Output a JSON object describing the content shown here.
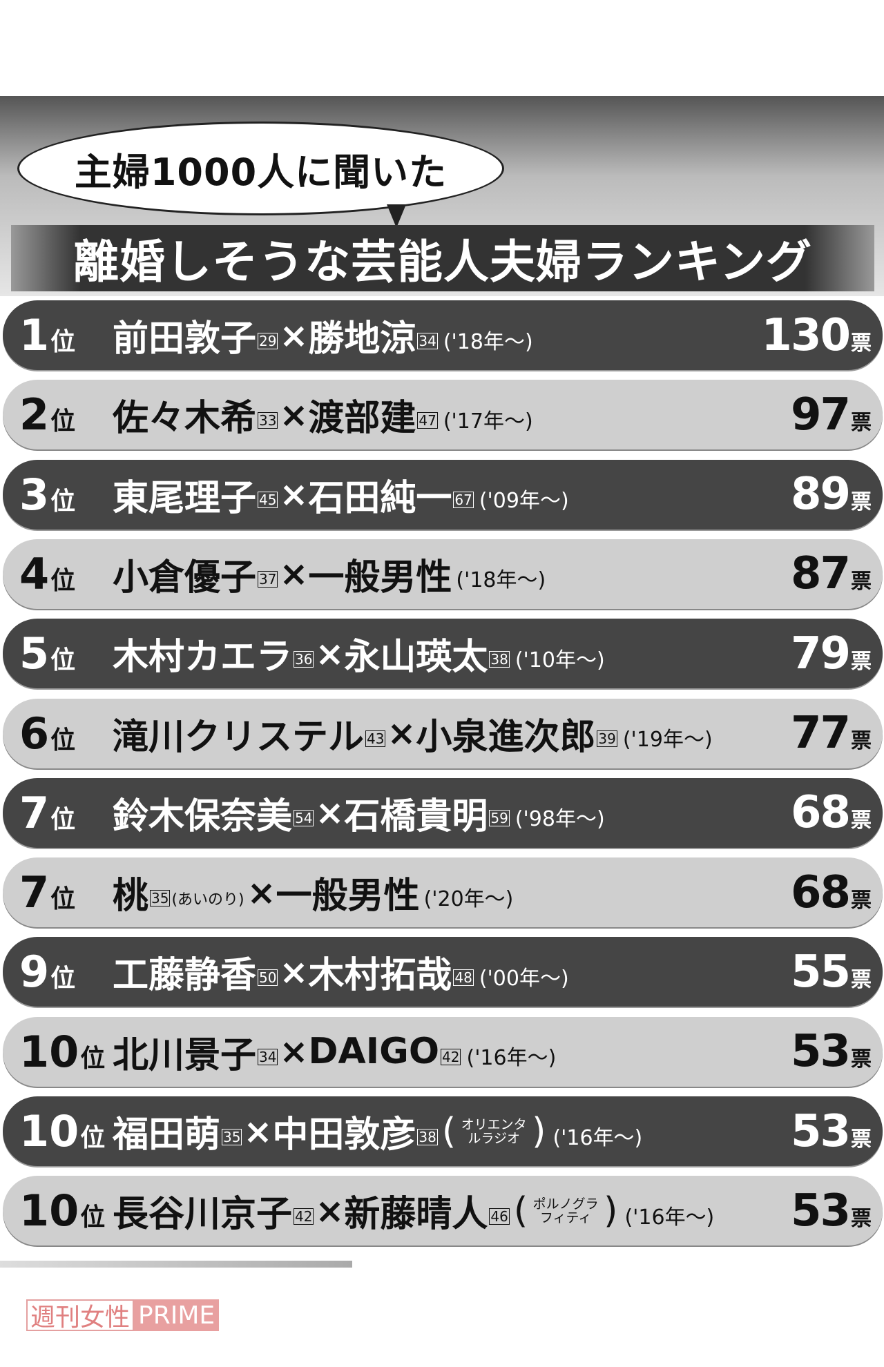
{
  "header": {
    "bubble": "主婦1000人に聞いた",
    "title": "離婚しそうな芸能人夫婦ランキング"
  },
  "rank_unit": "位",
  "separator": "×",
  "vote_unit": "票",
  "rows": [
    {
      "rank": "1",
      "wife": "前田敦子",
      "wife_age": 29,
      "husband": "勝地涼",
      "husband_age": 34,
      "since": "('18年〜)",
      "votes": 130
    },
    {
      "rank": "2",
      "wife": "佐々木希",
      "wife_age": 33,
      "husband": "渡部建",
      "husband_age": 47,
      "since": "('17年〜)",
      "votes": 97
    },
    {
      "rank": "3",
      "wife": "東尾理子",
      "wife_age": 45,
      "husband": "石田純一",
      "husband_age": 67,
      "since": "('09年〜)",
      "votes": 89
    },
    {
      "rank": "4",
      "wife": "小倉優子",
      "wife_age": 37,
      "husband": "一般男性",
      "since": "('18年〜)",
      "votes": 87
    },
    {
      "rank": "5",
      "wife": "木村カエラ",
      "wife_age": 36,
      "husband": "永山瑛太",
      "husband_age": 38,
      "since": "('10年〜)",
      "votes": 79
    },
    {
      "rank": "6",
      "wife": "滝川クリステル",
      "wife_age": 43,
      "husband": "小泉進次郎",
      "husband_age": 39,
      "since": "('19年〜)",
      "votes": 77
    },
    {
      "rank": "7",
      "wife": "鈴木保奈美",
      "wife_age": 54,
      "husband": "石橋貴明",
      "husband_age": 59,
      "since": "('98年〜)",
      "votes": 68
    },
    {
      "rank": "7",
      "wife": "桃",
      "wife_age": 35,
      "wife_note": "(あいのり)",
      "husband": "一般男性",
      "since": "('20年〜)",
      "votes": 68
    },
    {
      "rank": "9",
      "wife": "工藤静香",
      "wife_age": 50,
      "husband": "木村拓哉",
      "husband_age": 48,
      "since": "('00年〜)",
      "votes": 55
    },
    {
      "rank": "10",
      "wife": "北川景子",
      "wife_age": 34,
      "husband": "DAIGO",
      "husband_age": 42,
      "since": "('16年〜)",
      "votes": 53
    },
    {
      "rank": "10",
      "wife": "福田萌",
      "wife_age": 35,
      "husband": "中田敦彦",
      "husband_age": 38,
      "husband_note": "オリエンタルラジオ",
      "since": "('16年〜)",
      "votes": 53
    },
    {
      "rank": "10",
      "wife": "長谷川京子",
      "wife_age": 42,
      "husband": "新藤晴人",
      "husband_age": 46,
      "husband_note": "ポルノグラフィティ",
      "since": "('16年〜)",
      "votes": 53
    }
  ],
  "footer": {
    "brand": "週刊女性",
    "brand_tag": "PRIME"
  }
}
